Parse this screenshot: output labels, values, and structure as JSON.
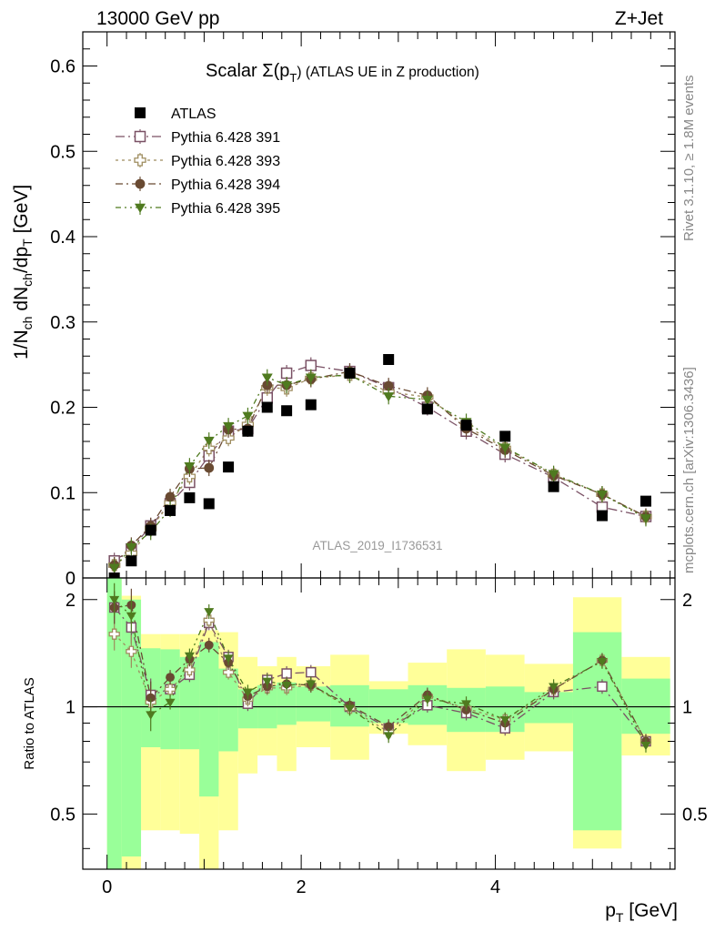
{
  "header": {
    "left": "13000 GeV pp",
    "right": "Z+Jet"
  },
  "side": {
    "rivet": "Rivet 3.1.10, ≥ 1.8M events",
    "mcplots": "mcplots.cern.ch [arXiv:1306.3436]"
  },
  "chart_data": [
    {
      "type": "scatter",
      "panel": "main",
      "title": "Scalar Σ(p_T) (ATLAS UE in Z production)",
      "title_main": "Scalar Σ(p",
      "title_sub": "T",
      "title_tail": ") (ATLAS UE in Z production)",
      "ylabel": "1/N_ch dN_ch/dp_T [GeV]",
      "xlabel": "p_T [GeV]",
      "watermark": "ATLAS_2019_I1736531",
      "xlim": [
        -0.25,
        5.85
      ],
      "ylim": [
        0,
        0.64
      ],
      "yticks": [
        "0",
        "0.1",
        "0.2",
        "0.3",
        "0.4",
        "0.5",
        "0.6"
      ],
      "xticks": [
        "0",
        "2",
        "4"
      ],
      "legend_position": "top-left",
      "x": [
        0.075,
        0.25,
        0.45,
        0.65,
        0.85,
        1.05,
        1.25,
        1.45,
        1.65,
        1.85,
        2.1,
        2.5,
        2.9,
        3.3,
        3.7,
        4.1,
        4.6,
        5.1,
        5.55
      ],
      "series": [
        {
          "name": "ATLAS",
          "marker": "square-filled",
          "color": "#000000",
          "values": [
            0.0,
            0.02,
            0.056,
            0.079,
            0.094,
            0.087,
            0.13,
            0.172,
            0.2,
            0.196,
            0.203,
            0.24,
            0.256,
            0.198,
            0.179,
            0.166,
            0.107,
            0.073,
            0.09
          ]
        },
        {
          "name": "Pythia 6.428 391",
          "marker": "square-open",
          "color": "#7a5165",
          "dash": "10,4,2,4",
          "values": [
            0.02,
            0.034,
            0.061,
            0.087,
            0.112,
            0.143,
            0.172,
            0.175,
            0.211,
            0.24,
            0.249,
            0.242,
            0.223,
            0.2,
            0.172,
            0.145,
            0.118,
            0.083,
            0.072
          ]
        },
        {
          "name": "Pythia 6.428 393",
          "marker": "cross-open",
          "color": "#9e8c5e",
          "dash": "3,4",
          "values": [
            0.015,
            0.029,
            0.058,
            0.088,
            0.119,
            0.152,
            0.164,
            0.18,
            0.223,
            0.222,
            0.234,
            0.238,
            0.218,
            0.212,
            0.178,
            0.152,
            0.121,
            0.098,
            0.072
          ]
        },
        {
          "name": "Pythia 6.428 394",
          "marker": "circle-filled",
          "color": "#694a32",
          "dash": "8,4,2,4",
          "values": [
            0.015,
            0.038,
            0.061,
            0.095,
            0.128,
            0.129,
            0.174,
            0.175,
            0.226,
            0.226,
            0.233,
            0.242,
            0.225,
            0.214,
            0.175,
            0.15,
            0.12,
            0.098,
            0.072
          ]
        },
        {
          "name": "Pythia 6.428 395",
          "marker": "triangle-down-filled",
          "color": "#4f7a1f",
          "dash": "6,4,2,4,2,4",
          "values": [
            0.012,
            0.036,
            0.054,
            0.081,
            0.131,
            0.161,
            0.178,
            0.19,
            0.235,
            0.226,
            0.235,
            0.238,
            0.213,
            0.209,
            0.183,
            0.153,
            0.122,
            0.098,
            0.07
          ]
        }
      ]
    },
    {
      "type": "scatter",
      "panel": "ratio",
      "ylabel": "Ratio to ATLAS",
      "ylog": true,
      "ylim": [
        0.35,
        2.3
      ],
      "yticks": [
        "0.5",
        "1",
        "2"
      ],
      "reference_line": 1,
      "bins": [
        [
          0.0,
          0.15
        ],
        [
          0.15,
          0.35
        ],
        [
          0.35,
          0.55
        ],
        [
          0.55,
          0.75
        ],
        [
          0.75,
          0.95
        ],
        [
          0.95,
          1.15
        ],
        [
          1.15,
          1.35
        ],
        [
          1.35,
          1.55
        ],
        [
          1.55,
          1.75
        ],
        [
          1.75,
          1.95
        ],
        [
          1.95,
          2.3
        ],
        [
          2.3,
          2.7
        ],
        [
          2.7,
          3.1
        ],
        [
          3.1,
          3.5
        ],
        [
          3.5,
          3.9
        ],
        [
          3.9,
          4.3
        ],
        [
          4.3,
          4.8
        ],
        [
          4.8,
          5.3
        ],
        [
          5.3,
          5.8
        ]
      ],
      "band_inner": [
        [
          0.3,
          2.5
        ],
        [
          0.38,
          2.0
        ],
        [
          0.77,
          1.46
        ],
        [
          0.76,
          1.45
        ],
        [
          0.76,
          1.38
        ],
        [
          0.56,
          1.52
        ],
        [
          0.75,
          1.28
        ],
        [
          0.87,
          1.12
        ],
        [
          0.87,
          1.15
        ],
        [
          0.89,
          1.17
        ],
        [
          0.91,
          1.14
        ],
        [
          0.88,
          1.15
        ],
        [
          0.9,
          1.12
        ],
        [
          0.89,
          1.15
        ],
        [
          0.85,
          1.13
        ],
        [
          0.85,
          1.14
        ],
        [
          0.9,
          1.1
        ],
        [
          0.45,
          1.62
        ],
        [
          0.84,
          1.2
        ]
      ],
      "band_outer": [
        [
          0.3,
          2.5
        ],
        [
          0.3,
          2.05
        ],
        [
          0.45,
          1.6
        ],
        [
          0.45,
          1.6
        ],
        [
          0.44,
          1.6
        ],
        [
          0.3,
          1.64
        ],
        [
          0.45,
          1.62
        ],
        [
          0.65,
          1.38
        ],
        [
          0.73,
          1.3
        ],
        [
          0.66,
          1.38
        ],
        [
          0.77,
          1.3
        ],
        [
          0.71,
          1.4
        ],
        [
          0.84,
          1.18
        ],
        [
          0.78,
          1.33
        ],
        [
          0.66,
          1.45
        ],
        [
          0.71,
          1.4
        ],
        [
          0.75,
          1.32
        ],
        [
          0.4,
          2.03
        ],
        [
          0.73,
          1.38
        ]
      ],
      "series": [
        {
          "name": "Pythia 6.428 391",
          "values": [
            1.9,
            1.67,
            1.08,
            1.12,
            1.23,
            1.72,
            1.38,
            1.02,
            1.19,
            1.24,
            1.25,
            1.0,
            0.87,
            1.01,
            0.96,
            0.87,
            1.1,
            1.14,
            0.8
          ]
        },
        {
          "name": "Pythia 6.428 393",
          "values": [
            1.6,
            1.43,
            1.03,
            1.12,
            1.27,
            1.75,
            1.25,
            1.05,
            1.13,
            1.13,
            1.15,
            0.99,
            0.85,
            1.07,
            0.99,
            0.92,
            1.12,
            1.35,
            0.8
          ]
        },
        {
          "name": "Pythia 6.428 394",
          "values": [
            1.9,
            1.93,
            1.06,
            1.21,
            1.36,
            1.49,
            1.33,
            1.07,
            1.14,
            1.16,
            1.15,
            1.01,
            0.88,
            1.08,
            0.98,
            0.9,
            1.12,
            1.35,
            0.8
          ]
        },
        {
          "name": "Pythia 6.428 395",
          "values": [
            2.0,
            1.8,
            0.95,
            1.03,
            1.39,
            1.85,
            1.37,
            1.1,
            1.18,
            1.15,
            1.16,
            0.99,
            0.83,
            1.05,
            1.02,
            0.92,
            1.14,
            1.34,
            0.78
          ]
        }
      ]
    }
  ]
}
